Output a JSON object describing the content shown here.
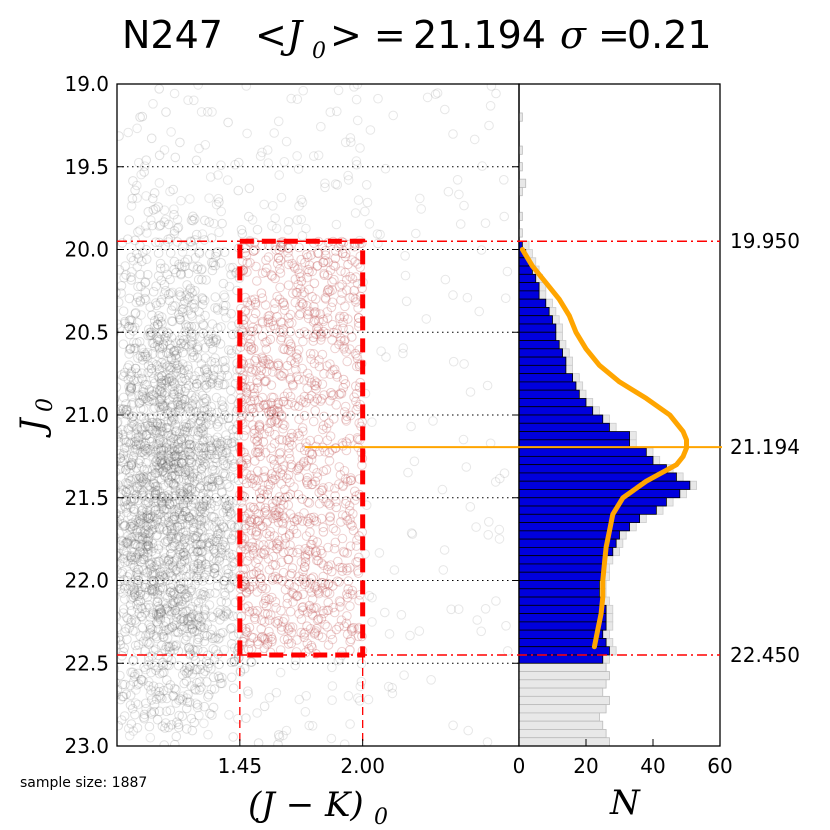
{
  "title": {
    "field": "N247",
    "mean_label": "<J",
    "mean_sub": "0",
    "mean_close": "> =",
    "mean_value": "21.194",
    "sigma_label": "σ =",
    "sigma_value": "0.21"
  },
  "sample_note": "sample size: 1887",
  "colors": {
    "scatter_gray": "#555555",
    "scatter_red": "#c86464",
    "box_red": "#ff0000",
    "hist_blue": "#0000dd",
    "hist_gray": "#e8e8e8",
    "fit_orange": "#ffa500",
    "grid": "#000000"
  },
  "chart_data": [
    {
      "type": "scatter",
      "name": "cmd",
      "xlabel_main": "(J − K)",
      "xlabel_sub": "0",
      "ylabel_main": "J",
      "ylabel_sub": "0",
      "xlim": [
        0.9,
        2.7
      ],
      "ylim": [
        23.0,
        19.0
      ],
      "x_ticks": [
        "1.45",
        "2.00"
      ],
      "x_tick_values": [
        1.45,
        2.0
      ],
      "y_ticks": [
        "19.0",
        "19.5",
        "20.0",
        "20.5",
        "21.0",
        "21.5",
        "22.0",
        "22.5",
        "23.0"
      ],
      "y_tick_values": [
        19.0,
        19.5,
        20.0,
        20.5,
        21.0,
        21.5,
        22.0,
        22.5,
        23.0
      ],
      "grid": "dotted horizontal",
      "selection_box": {
        "x_min": 1.45,
        "x_max": 2.0,
        "y_min": 19.95,
        "y_max": 22.45
      },
      "sample_size": 1887,
      "mean_line_y": 21.194
    },
    {
      "type": "bar",
      "name": "luminosity-function",
      "orientation": "horizontal",
      "xlabel": "N",
      "xlim": [
        0,
        60
      ],
      "x_ticks": [
        "0",
        "20",
        "40",
        "60"
      ],
      "x_tick_values": [
        0,
        20,
        40,
        60
      ],
      "bin_width": 0.05,
      "bins_start": 19.95,
      "counts": [
        1,
        2,
        3,
        4,
        5,
        6,
        6,
        8,
        9,
        10,
        11,
        11,
        12,
        13,
        14,
        14,
        16,
        17,
        18,
        20,
        22,
        25,
        27,
        33,
        33,
        38,
        40,
        44,
        47,
        51,
        48,
        44,
        41,
        36,
        33,
        30,
        29,
        28,
        26,
        25,
        25,
        24,
        24,
        25,
        26,
        26,
        26,
        25,
        26,
        27,
        25
      ],
      "gray_bins_start": 19.0,
      "gray_counts_upper": [
        0,
        0,
        0,
        1,
        0,
        0,
        0,
        1,
        0,
        1,
        0,
        2,
        1,
        0,
        0,
        1,
        0,
        1,
        0
      ],
      "gray_counts_lower": [
        25,
        26,
        27,
        26,
        25,
        27,
        26,
        24,
        25,
        26,
        27,
        25,
        27,
        26
      ],
      "fit_curve": {
        "y": [
          20.0,
          20.1,
          20.2,
          20.3,
          20.4,
          20.5,
          20.6,
          20.7,
          20.8,
          20.9,
          21.0,
          21.1,
          21.15,
          21.2,
          21.25,
          21.3,
          21.4,
          21.5,
          21.6,
          21.7,
          21.8,
          21.9,
          22.0,
          22.1,
          22.2,
          22.3,
          22.4
        ],
        "n": [
          1,
          4,
          8,
          12,
          15,
          17,
          20,
          24,
          30,
          38,
          45,
          49,
          50,
          50,
          49,
          47,
          38,
          31,
          28,
          27,
          26,
          25.5,
          25,
          25,
          24.5,
          23.5,
          22.5
        ]
      },
      "ref_lines": [
        {
          "value": 19.95,
          "label": "19.950"
        },
        {
          "value": 21.194,
          "label": "21.194"
        },
        {
          "value": 22.45,
          "label": "22.450"
        }
      ]
    }
  ]
}
